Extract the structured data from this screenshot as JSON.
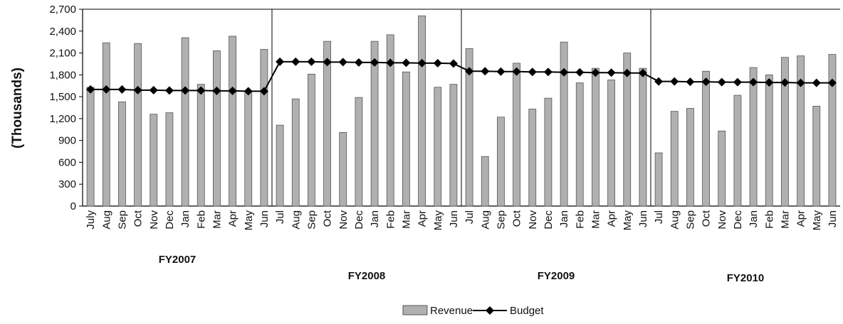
{
  "chart_data": {
    "type": "bar",
    "title": "",
    "ylabel": "(Thousands)",
    "xlabel": "",
    "ylim": [
      0,
      2700
    ],
    "yticks": [
      0,
      300,
      600,
      900,
      1200,
      1500,
      1800,
      2100,
      2400,
      2700
    ],
    "ytick_labels": [
      "0",
      "300",
      "600",
      "900",
      "1,200",
      "1,500",
      "1,800",
      "2,100",
      "2,400",
      "2,700"
    ],
    "grid": false,
    "legend_position": "bottom-center",
    "groups": [
      {
        "label": "FY2007",
        "start": 0,
        "end": 12
      },
      {
        "label": "FY2008",
        "start": 12,
        "end": 24
      },
      {
        "label": "FY2009",
        "start": 24,
        "end": 36
      },
      {
        "label": "FY2010",
        "start": 36,
        "end": 48
      }
    ],
    "categories": [
      "July",
      "Aug",
      "Sep",
      "Oct",
      "Nov",
      "Dec",
      "Jan",
      "Feb",
      "Mar",
      "Apr",
      "May",
      "Jun",
      "Jul",
      "Aug",
      "Sep",
      "Oct",
      "Nov",
      "Dec",
      "Jan",
      "Feb",
      "Mar",
      "Apr",
      "May",
      "Jun",
      "Jul",
      "Aug",
      "Sep",
      "Oct",
      "Nov",
      "Dec",
      "Jan",
      "Feb",
      "Mar",
      "Apr",
      "May",
      "Jun",
      "Jul",
      "Aug",
      "Sep",
      "Oct",
      "Nov",
      "Dec",
      "Jan",
      "Feb",
      "Mar",
      "Apr",
      "May",
      "Jun"
    ],
    "series": [
      {
        "name": "Revenue",
        "kind": "bar",
        "color": "#b0b0b0",
        "values": [
          1630,
          2240,
          1430,
          2230,
          1260,
          1280,
          2310,
          1670,
          2130,
          2330,
          1570,
          2150,
          1110,
          1470,
          1810,
          2260,
          1010,
          1490,
          2260,
          2350,
          1840,
          2610,
          1630,
          1670,
          2160,
          680,
          1220,
          1960,
          1330,
          1480,
          2250,
          1690,
          1890,
          1730,
          2100,
          1890,
          730,
          1300,
          1340,
          1850,
          1030,
          1520,
          1900,
          1800,
          2040,
          2060,
          1370,
          2080
        ]
      },
      {
        "name": "Budget",
        "kind": "line",
        "color": "#000000",
        "values": [
          1600,
          1600,
          1600,
          1590,
          1590,
          1585,
          1585,
          1585,
          1580,
          1580,
          1575,
          1575,
          1980,
          1980,
          1980,
          1975,
          1975,
          1970,
          1970,
          1965,
          1965,
          1960,
          1960,
          1955,
          1850,
          1850,
          1845,
          1845,
          1840,
          1840,
          1835,
          1835,
          1830,
          1830,
          1825,
          1825,
          1710,
          1710,
          1705,
          1705,
          1700,
          1700,
          1700,
          1695,
          1695,
          1690,
          1690,
          1690
        ]
      }
    ]
  },
  "colors": {
    "bar_fill": "#b0b0b0",
    "bar_stroke": "#555555",
    "line": "#000000",
    "axis": "#000000"
  }
}
